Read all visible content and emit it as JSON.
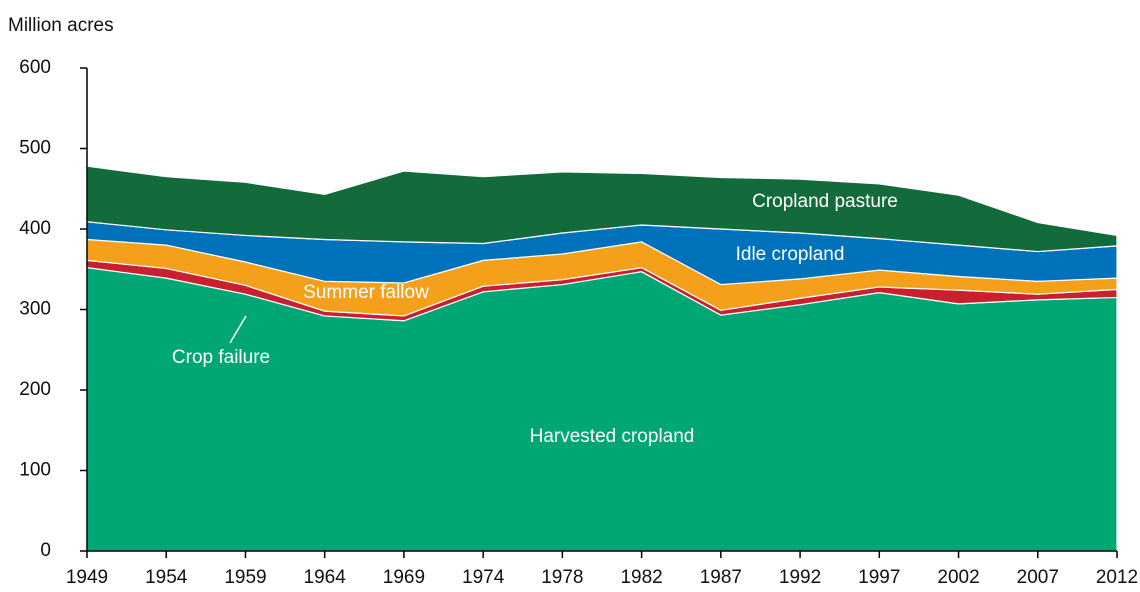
{
  "chart_data": {
    "type": "stacked-area",
    "y_axis_label": "Million acres",
    "categories": [
      "1949",
      "1954",
      "1959",
      "1964",
      "1969",
      "1974",
      "1978",
      "1982",
      "1987",
      "1992",
      "1997",
      "2002",
      "2007",
      "2012"
    ],
    "ylim": [
      0,
      600
    ],
    "yticks": [
      0,
      100,
      200,
      300,
      400,
      500,
      600
    ],
    "series": [
      {
        "name": "Harvested cropland",
        "color": "#00a774",
        "values": [
          352,
          339,
          319,
          292,
          286,
          322,
          331,
          347,
          293,
          306,
          321,
          307,
          312,
          315
        ]
      },
      {
        "name": "Crop failure",
        "color": "#c8202f",
        "values": [
          9,
          12,
          11,
          6,
          6,
          7,
          6,
          5,
          6,
          8,
          7,
          17,
          7,
          10
        ]
      },
      {
        "name": "Summer fallow",
        "color": "#f5a01a",
        "values": [
          26,
          29,
          29,
          37,
          41,
          32,
          32,
          32,
          32,
          24,
          21,
          17,
          16,
          14
        ]
      },
      {
        "name": "Idle cropland",
        "color": "#0072bc",
        "values": [
          22,
          19,
          33,
          52,
          51,
          21,
          26,
          21,
          69,
          57,
          39,
          39,
          37,
          40
        ]
      },
      {
        "name": "Cropland pasture",
        "color": "#136a3a",
        "values": [
          69,
          66,
          66,
          56,
          88,
          83,
          76,
          64,
          64,
          67,
          68,
          62,
          36,
          13
        ]
      }
    ]
  }
}
